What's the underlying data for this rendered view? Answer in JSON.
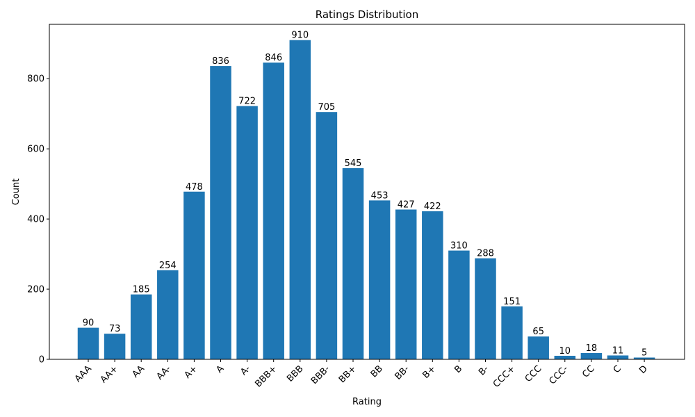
{
  "chart_data": {
    "type": "bar",
    "title": "Ratings Distribution",
    "xlabel": "Rating",
    "ylabel": "Count",
    "categories": [
      "AAA",
      "AA+",
      "AA",
      "AA-",
      "A+",
      "A",
      "A-",
      "BBB+",
      "BBB",
      "BBB-",
      "BB+",
      "BB",
      "BB-",
      "B+",
      "B",
      "B-",
      "CCC+",
      "CCC",
      "CCC-",
      "CC",
      "C",
      "D"
    ],
    "values": [
      90,
      73,
      185,
      254,
      478,
      836,
      722,
      846,
      910,
      705,
      545,
      453,
      427,
      422,
      310,
      288,
      151,
      65,
      10,
      18,
      11,
      5
    ],
    "ylim": [
      0,
      955
    ],
    "yticks": [
      0,
      200,
      400,
      600,
      800
    ],
    "grid": false,
    "bar_color": "#1f77b4",
    "data_labels": true
  }
}
